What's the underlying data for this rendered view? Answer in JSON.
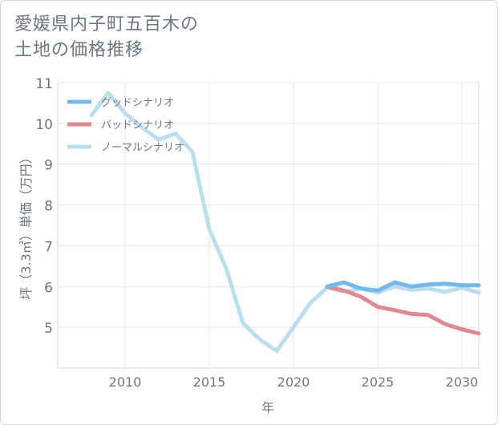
{
  "title": {
    "line1": "愛媛県内子町五百木の",
    "line2": "土地の価格推移"
  },
  "chart_data": {
    "type": "line",
    "title": "愛媛県内子町五百木の土地の価格推移",
    "xlabel": "年",
    "ylabel": "坪（3.3㎡）単価（万円）",
    "xlim": [
      2006,
      2031
    ],
    "ylim": [
      4,
      11
    ],
    "xticks": [
      2010,
      2015,
      2020,
      2025,
      2030
    ],
    "yticks": [
      5,
      6,
      7,
      8,
      9,
      10,
      11
    ],
    "grid": true,
    "legend_position": "top-left",
    "series": [
      {
        "name": "グッドシナリオ",
        "color": "#72b8e8",
        "x": [
          2022,
          2023,
          2024,
          2025,
          2026,
          2027,
          2028,
          2029,
          2030,
          2031
        ],
        "y": [
          6.0,
          6.1,
          5.95,
          5.9,
          6.1,
          6.0,
          6.05,
          6.07,
          6.03,
          6.03
        ]
      },
      {
        "name": "バッドシナリオ",
        "color": "#de8a93",
        "x": [
          2022,
          2023,
          2024,
          2025,
          2026,
          2027,
          2028,
          2029,
          2030,
          2031
        ],
        "y": [
          6.0,
          5.9,
          5.75,
          5.5,
          5.42,
          5.33,
          5.3,
          5.08,
          4.95,
          4.85
        ]
      },
      {
        "name": "ノーマルシナリオ",
        "color": "#badeed",
        "x": [
          2008,
          2009,
          2010,
          2011,
          2012,
          2013,
          2014,
          2015,
          2016,
          2017,
          2018,
          2019,
          2020,
          2021,
          2022,
          2023,
          2024,
          2025,
          2026,
          2027,
          2028,
          2029,
          2030,
          2031
        ],
        "y": [
          10.2,
          10.75,
          10.25,
          9.9,
          9.6,
          9.75,
          9.3,
          7.4,
          6.45,
          5.1,
          4.7,
          4.42,
          5.0,
          5.6,
          5.97,
          5.87,
          5.95,
          5.85,
          6.0,
          5.92,
          5.95,
          5.87,
          5.97,
          5.85
        ]
      }
    ]
  }
}
